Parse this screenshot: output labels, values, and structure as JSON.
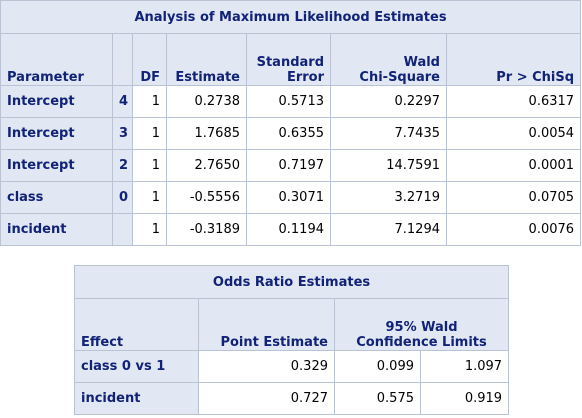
{
  "mle_table": {
    "title": "Analysis of Maximum Likelihood Estimates",
    "headers": {
      "parameter": "Parameter",
      "df": "DF",
      "estimate": "Estimate",
      "std_error_line1": "Standard",
      "std_error_line2": "Error",
      "wald_line1": "Wald",
      "wald_line2": "Chi-Square",
      "pr": "Pr > ChiSq"
    },
    "rows": [
      {
        "parameter": "Intercept",
        "level": "4",
        "df": "1",
        "estimate": "0.2738",
        "std_error": "0.5713",
        "wald": "0.2297",
        "pr": "0.6317"
      },
      {
        "parameter": "Intercept",
        "level": "3",
        "df": "1",
        "estimate": "1.7685",
        "std_error": "0.6355",
        "wald": "7.7435",
        "pr": "0.0054"
      },
      {
        "parameter": "Intercept",
        "level": "2",
        "df": "1",
        "estimate": "2.7650",
        "std_error": "0.7197",
        "wald": "14.7591",
        "pr": "0.0001"
      },
      {
        "parameter": "class",
        "level": "0",
        "df": "1",
        "estimate": "-0.5556",
        "std_error": "0.3071",
        "wald": "3.2719",
        "pr": "0.0705"
      },
      {
        "parameter": "incident",
        "level": "",
        "df": "1",
        "estimate": "-0.3189",
        "std_error": "0.1194",
        "wald": "7.1294",
        "pr": "0.0076"
      }
    ]
  },
  "odds_table": {
    "title": "Odds Ratio Estimates",
    "headers": {
      "effect": "Effect",
      "point": "Point Estimate",
      "ci_line1": "95% Wald",
      "ci_line2": "Confidence Limits"
    },
    "rows": [
      {
        "effect": "class 0 vs 1",
        "point": "0.329",
        "lower": "0.099",
        "upper": "1.097"
      },
      {
        "effect": "incident",
        "point": "0.727",
        "lower": "0.575",
        "upper": "0.919"
      }
    ]
  },
  "colors": {
    "header_bg": "#e1e8f3",
    "header_text": "#112277",
    "border": "#b9c3d3"
  }
}
